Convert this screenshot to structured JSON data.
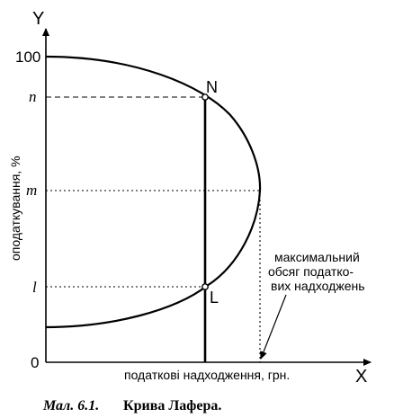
{
  "axes": {
    "y_name": "Y",
    "x_name": "X",
    "y_title": "оподаткування, %",
    "x_title": "податкові надходження, грн.",
    "origin": "0",
    "y_ticks": {
      "top": "100",
      "n": "n",
      "m": "m",
      "l": "l"
    }
  },
  "points": {
    "N": "N",
    "L": "L"
  },
  "annotation": {
    "line1": "максимальний",
    "line2": "обсяг податко-",
    "line3": "вих надходжень"
  },
  "caption": {
    "number": "Мал. 6.1.",
    "title": "Крива Лафера."
  }
}
